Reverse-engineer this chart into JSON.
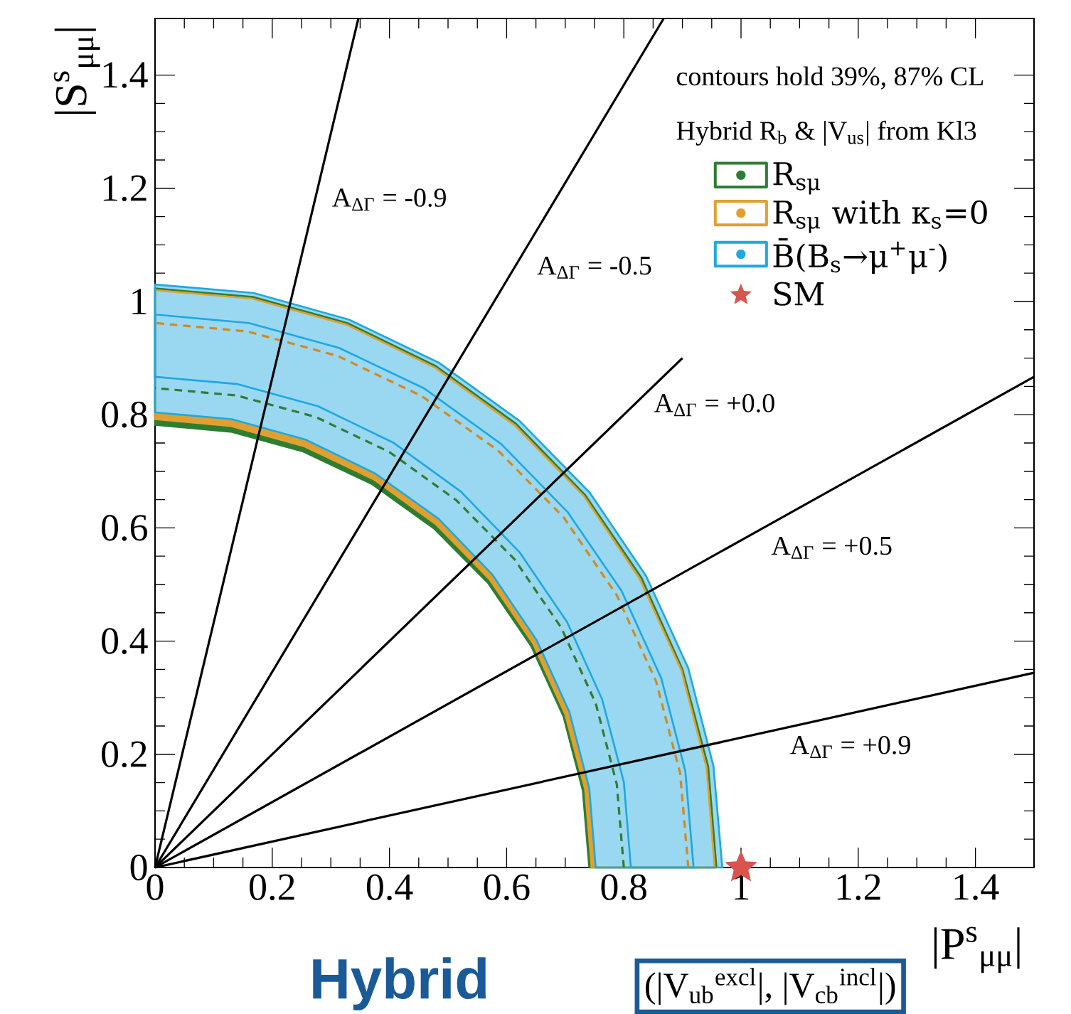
{
  "chart_data": {
    "type": "line",
    "xlabel": "|P$^{s}$$_{μμ}$|",
    "ylabel": "|S$^{s}$$_{μμ}$|",
    "xlim": [
      0,
      1.5
    ],
    "ylim": [
      0,
      1.5
    ],
    "xticks": [
      0,
      0.2,
      0.4,
      0.6,
      0.8,
      1,
      1.2,
      1.4
    ],
    "yticks": [
      0,
      0.2,
      0.4,
      0.6,
      0.8,
      1,
      1.2,
      1.4
    ],
    "legend": "top right",
    "series": [
      {
        "name": "R$_{sμ}$",
        "type": "area",
        "color": "#2e7d32",
        "x": [
          0.958,
          0.944,
          0.9,
          0.83,
          0.734,
          0.616,
          0.479,
          0.328,
          0.167,
          0,
          0,
          0.129,
          0.253,
          0.371,
          0.476,
          0.568,
          0.642,
          0.697,
          0.73,
          0.741
        ],
        "values": [
          0,
          0.178,
          0.35,
          0.512,
          0.658,
          0.784,
          0.886,
          0.962,
          1.008,
          1.023,
          0.782,
          0.77,
          0.735,
          0.677,
          0.599,
          0.503,
          0.391,
          0.267,
          0.136,
          0
        ]
      },
      {
        "name": "R$_{sμ}$ with  κ$_{s}$=0",
        "type": "area",
        "color": "#e0a030",
        "x": [
          0.955,
          0.941,
          0.898,
          0.827,
          0.732,
          0.614,
          0.478,
          0.327,
          0.166,
          0,
          0,
          0.13,
          0.255,
          0.373,
          0.479,
          0.571,
          0.645,
          0.7,
          0.734,
          0.745
        ],
        "values": [
          0,
          0.177,
          0.349,
          0.51,
          0.656,
          0.781,
          0.883,
          0.959,
          1.005,
          1.02,
          0.792,
          0.78,
          0.744,
          0.686,
          0.607,
          0.509,
          0.396,
          0.271,
          0.138,
          0
        ]
      },
      {
        "name": "B̄(B$_{s}$→μ$^{+}$μ$^{-}$)",
        "type": "area",
        "color": "#1fa8e0",
        "x": [
          0.968,
          0.953,
          0.91,
          0.838,
          0.742,
          0.622,
          0.484,
          0.331,
          0.168,
          0,
          0,
          0.131,
          0.257,
          0.376,
          0.484,
          0.576,
          0.651,
          0.707,
          0.741,
          0.752
        ],
        "values": [
          0,
          0.179,
          0.352,
          0.515,
          0.662,
          0.789,
          0.892,
          0.968,
          1.015,
          1.03,
          0.804,
          0.792,
          0.756,
          0.696,
          0.616,
          0.517,
          0.402,
          0.275,
          0.14,
          0
        ]
      },
      {
        "type": "area",
        "color": "#1fa8e0",
        "x": [
          0.919,
          0.905,
          0.864,
          0.796,
          0.704,
          0.591,
          0.46,
          0.314,
          0.16,
          0,
          0,
          0.141,
          0.278,
          0.406,
          0.522,
          0.622,
          0.703,
          0.763,
          0.8,
          0.812
        ],
        "values": [
          0,
          0.17,
          0.334,
          0.489,
          0.628,
          0.748,
          0.846,
          0.918,
          0.962,
          0.977,
          0.867,
          0.854,
          0.815,
          0.751,
          0.664,
          0.557,
          0.434,
          0.297,
          0.151,
          0
        ]
      },
      {
        "line_style": "dashed",
        "color": "#d08a20",
        "x": [
          0.91,
          0.896,
          0.855,
          0.788,
          0.697,
          0.585,
          0.455,
          0.311,
          0.158,
          0
        ],
        "values": [
          0,
          0.167,
          0.329,
          0.481,
          0.619,
          0.737,
          0.833,
          0.904,
          0.947,
          0.962
        ]
      },
      {
        "line_style": "dashed",
        "color": "#2e7d32",
        "x": [
          0.8,
          0.788,
          0.752,
          0.693,
          0.613,
          0.514,
          0.4,
          0.274,
          0.139,
          0
        ],
        "values": [
          0,
          0.147,
          0.29,
          0.424,
          0.545,
          0.649,
          0.734,
          0.796,
          0.834,
          0.847
        ]
      },
      {
        "color": "#000000",
        "x": [
          0,
          0.347
        ],
        "values": [
          0,
          1.5
        ]
      },
      {
        "color": "#000000",
        "x": [
          0,
          0.868
        ],
        "values": [
          0,
          1.5
        ]
      },
      {
        "color": "#000000",
        "x": [
          0,
          0.9
        ],
        "values": [
          0,
          0.9
        ]
      },
      {
        "color": "#000000",
        "x": [
          0,
          1.5
        ],
        "values": [
          0,
          0.867
        ]
      },
      {
        "color": "#000000",
        "x": [
          0,
          1.5
        ],
        "values": [
          0,
          0.344
        ]
      },
      {
        "name": "SM",
        "type": "scatter",
        "marker": "star",
        "color": "#d9534f",
        "x": [
          1
        ],
        "values": [
          0
        ]
      }
    ],
    "annotations": [
      "contours hold 39%, 87% CL",
      "Hybrid R$_{b}$ & |V$_{us}$| from Kl3",
      "**Hybrid**",
      "(|V$_{ub}$$^{excl}$|, |V$_{cb}$$^{incl}$|)",
      "A$_{ΔΓ}$ = -0.9",
      "A$_{ΔΓ}$ = -0.5",
      "A$_{ΔΓ}$ = +0.0",
      "A$_{ΔΓ}$ = +0.5",
      "A$_{ΔΓ}$ = +0.9"
    ]
  }
}
